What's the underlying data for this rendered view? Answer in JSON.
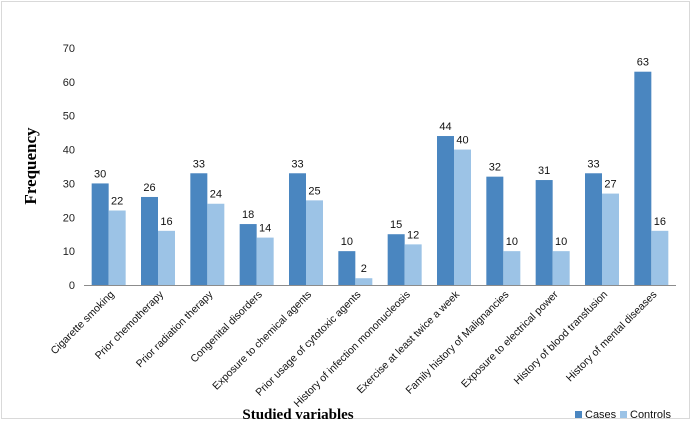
{
  "chart_data": {
    "type": "bar",
    "title": "",
    "xlabel": "Studied variables",
    "ylabel": "Frequency",
    "ylim": [
      0,
      70
    ],
    "yticks": [
      0,
      10,
      20,
      30,
      40,
      50,
      60,
      70
    ],
    "grid": false,
    "legend_position": "bottom-right",
    "categories": [
      "Cigarette smoking",
      "Prior chemotherapy",
      "Prior radiation therapy",
      "Congenital disorders",
      "Exposure to chemical agents",
      "Prior usage of cytotoxic agents",
      "History of infection mononucleosis",
      "Exercise at least twice a week",
      "Family history of Malignancies",
      "Exposure to electrical power",
      "History of blood transfusion",
      "History of mental diseases"
    ],
    "series": [
      {
        "name": "Cases",
        "color": "#4a86c0",
        "values": [
          30,
          26,
          33,
          18,
          33,
          10,
          15,
          44,
          32,
          31,
          33,
          63
        ]
      },
      {
        "name": "Controls",
        "color": "#9cc3e6",
        "values": [
          22,
          16,
          24,
          14,
          25,
          2,
          12,
          40,
          10,
          10,
          27,
          16
        ]
      }
    ]
  }
}
